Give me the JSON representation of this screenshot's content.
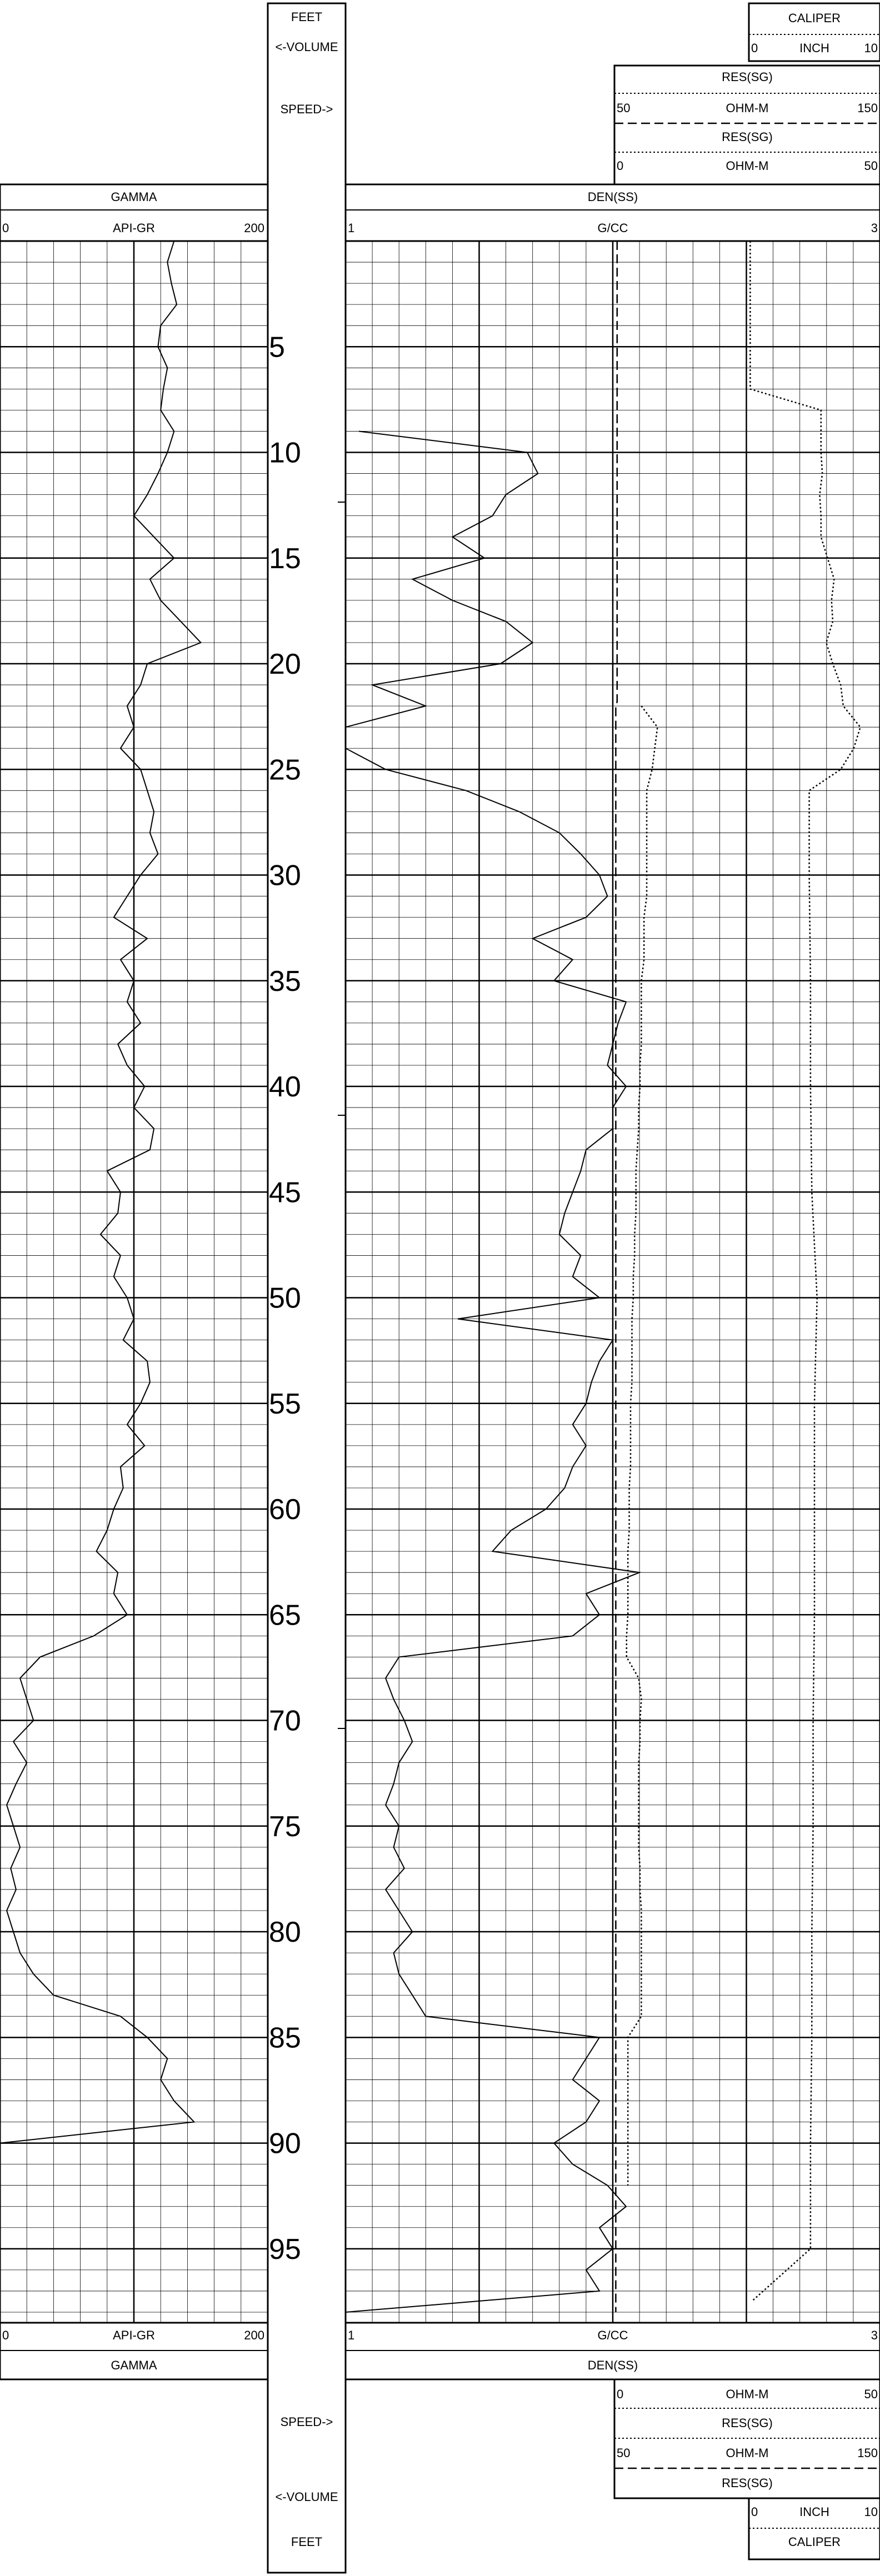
{
  "depth_track": {
    "unit": "FEET",
    "volume_label": "<-VOLUME",
    "speed_label": "SPEED->"
  },
  "headers": {
    "gamma": {
      "title": "GAMMA",
      "unit": "API-GR",
      "left": "0",
      "right": "200"
    },
    "density": {
      "title": "DEN(SS)",
      "unit": "G/CC",
      "left": "1",
      "right": "3"
    },
    "res_deep": {
      "title": "RES(SG)",
      "unit": "OHM-M",
      "left": "0",
      "right": "50"
    },
    "res_shallow": {
      "title": "RES(SG)",
      "unit": "OHM-M",
      "left": "50",
      "right": "150"
    },
    "caliper": {
      "title": "CALIPER",
      "unit": "INCH",
      "left": "0",
      "right": "10"
    }
  },
  "chart_data": {
    "type": "line",
    "depth_unit": "FEET",
    "depth_range": [
      0,
      98.5
    ],
    "depth_labels": [
      "5",
      "10",
      "15",
      "20",
      "25",
      "30",
      "35",
      "40",
      "45",
      "50",
      "55",
      "60",
      "65",
      "70",
      "75",
      "80",
      "85",
      "90",
      "95"
    ],
    "grid": true,
    "series": [
      {
        "name": "GAMMA",
        "unit": "API-GR",
        "xlim": [
          0,
          200
        ],
        "depth": [
          0,
          1,
          2,
          3,
          4,
          5,
          6,
          7,
          8,
          9,
          10,
          11,
          12,
          13,
          14,
          15,
          16,
          17,
          18,
          19,
          20,
          21,
          22,
          23,
          24,
          25,
          26,
          27,
          28,
          29,
          30,
          31,
          32,
          33,
          34,
          35,
          36,
          37,
          38,
          39,
          40,
          41,
          42,
          43,
          44,
          45,
          46,
          47,
          48,
          49,
          50,
          51,
          52,
          53,
          54,
          55,
          56,
          57,
          58,
          59,
          60,
          61,
          62,
          63,
          64,
          65,
          66,
          67,
          68,
          69,
          70,
          71,
          72,
          73,
          74,
          75,
          76,
          77,
          78,
          79,
          80,
          81,
          82,
          83,
          84,
          85,
          86,
          87,
          88,
          89,
          90,
          91,
          92,
          93,
          94,
          95,
          96,
          97,
          98
        ],
        "values": [
          130,
          125,
          128,
          132,
          120,
          118,
          125,
          122,
          120,
          130,
          125,
          118,
          110,
          100,
          115,
          130,
          112,
          120,
          135,
          150,
          110,
          105,
          95,
          100,
          90,
          105,
          110,
          115,
          112,
          118,
          105,
          95,
          85,
          110,
          90,
          100,
          95,
          105,
          88,
          95,
          108,
          100,
          115,
          112,
          80,
          90,
          88,
          75,
          90,
          85,
          95,
          100,
          92,
          110,
          112,
          105,
          95,
          108,
          90,
          92,
          85,
          80,
          72,
          88,
          85,
          95,
          70,
          30,
          15,
          20,
          25,
          10,
          20,
          12,
          5,
          10,
          15,
          8,
          12,
          5,
          10,
          15,
          25,
          40,
          90,
          110,
          125,
          120,
          130,
          145,
          0,
          0,
          0,
          0,
          0,
          0,
          0,
          0,
          0
        ],
        "style": "solid"
      },
      {
        "name": "DEN(SS)",
        "unit": "G/CC",
        "xlim": [
          1,
          3
        ],
        "depth": [
          0,
          1,
          2,
          3,
          4,
          5,
          6,
          7,
          8,
          9,
          10,
          11,
          12,
          13,
          14,
          15,
          16,
          17,
          18,
          19,
          20,
          21,
          22,
          23,
          24,
          25,
          26,
          27,
          28,
          29,
          30,
          31,
          32,
          33,
          34,
          35,
          36,
          37,
          38,
          39,
          40,
          41,
          42,
          43,
          44,
          45,
          46,
          47,
          48,
          49,
          50,
          51,
          52,
          53,
          54,
          55,
          56,
          57,
          58,
          59,
          60,
          61,
          62,
          63,
          64,
          65,
          66,
          67,
          68,
          69,
          70,
          71,
          72,
          73,
          74,
          75,
          76,
          77,
          78,
          79,
          80,
          81,
          82,
          83,
          84,
          85,
          86,
          87,
          88,
          89,
          90,
          91,
          92,
          93,
          94,
          95,
          96,
          97,
          98
        ],
        "values": [
          null,
          null,
          null,
          null,
          null,
          null,
          null,
          null,
          null,
          1.05,
          1.68,
          1.72,
          1.6,
          1.55,
          1.4,
          1.52,
          1.25,
          1.4,
          1.6,
          1.7,
          1.58,
          1.1,
          1.3,
          1.0,
          1.0,
          1.15,
          1.45,
          1.65,
          1.8,
          1.88,
          1.95,
          1.98,
          1.9,
          1.7,
          1.85,
          1.78,
          2.05,
          2.02,
          2.0,
          1.98,
          2.05,
          2.0,
          2.0,
          1.9,
          1.88,
          1.85,
          1.82,
          1.8,
          1.88,
          1.85,
          1.95,
          1.42,
          2.0,
          1.95,
          1.92,
          1.9,
          1.85,
          1.9,
          1.85,
          1.82,
          1.75,
          1.62,
          1.55,
          2.1,
          1.9,
          1.95,
          1.85,
          1.2,
          1.15,
          1.18,
          1.22,
          1.25,
          1.2,
          1.18,
          1.15,
          1.2,
          1.18,
          1.22,
          1.15,
          1.2,
          1.25,
          1.18,
          1.2,
          1.25,
          1.3,
          1.95,
          1.9,
          1.85,
          1.95,
          1.9,
          1.78,
          1.85,
          1.98,
          2.05,
          1.95,
          2.0,
          1.9,
          1.95,
          1.0
        ],
        "style": "solid"
      },
      {
        "name": "RES(SG) OHM-M 0-50",
        "unit": "OHM-M",
        "xlim": [
          0,
          50
        ],
        "depth": [
          22,
          23,
          24,
          25,
          26,
          27,
          28,
          29,
          30,
          31,
          32,
          33,
          34,
          35,
          36,
          37,
          38,
          39,
          40,
          41,
          42,
          43,
          44,
          45,
          46,
          47,
          48,
          49,
          50,
          51,
          52,
          53,
          54,
          55,
          56,
          57,
          58,
          59,
          60,
          61,
          62,
          63,
          64,
          65,
          66,
          67,
          68,
          69,
          70,
          71,
          72,
          73,
          74,
          75,
          76,
          77,
          78,
          79,
          80,
          81,
          82,
          83,
          84,
          85,
          86,
          87,
          88,
          89,
          90,
          91,
          92
        ],
        "values": [
          10,
          16,
          15,
          14,
          12,
          12,
          12,
          12,
          12,
          12,
          11,
          11,
          11,
          10,
          10,
          10,
          10,
          9.5,
          9.5,
          9,
          9,
          8.5,
          8,
          8,
          8,
          7.5,
          7.5,
          7,
          7,
          6.5,
          6.5,
          6.5,
          6.5,
          6,
          6,
          6,
          6,
          5.5,
          5.5,
          5.5,
          5,
          5,
          5,
          5,
          4.5,
          4.5,
          9,
          10,
          9.5,
          9.5,
          9,
          9,
          9,
          9,
          9,
          9.5,
          9.5,
          10,
          10,
          10,
          10,
          10,
          10,
          5,
          5,
          5,
          5,
          5,
          5,
          5,
          5
        ],
        "style": "dotted"
      },
      {
        "name": "RES(SG) OHM-M 50-150",
        "unit": "OHM-M",
        "xlim": [
          50,
          150
        ],
        "depth": [
          0,
          21.5,
          21.8,
          22,
          98
        ],
        "values": [
          51,
          51,
          51,
          50.5,
          50.5
        ],
        "style": "dashed"
      },
      {
        "name": "CALIPER",
        "unit": "INCH",
        "xlim": [
          0,
          10
        ],
        "depth": [
          0,
          7,
          8,
          9,
          10,
          11,
          12,
          13,
          14,
          15,
          16,
          17,
          18,
          19,
          20,
          21,
          22,
          23,
          24,
          25,
          26,
          30,
          35,
          40,
          45,
          50,
          55,
          60,
          65,
          70,
          75,
          80,
          85,
          90,
          95,
          97.5
        ],
        "values": [
          0.1,
          0.1,
          5.5,
          5.5,
          5.5,
          5.6,
          5.4,
          5.5,
          5.5,
          6.0,
          6.5,
          6.3,
          6.4,
          5.9,
          6.4,
          7.0,
          7.2,
          8.5,
          8.0,
          7.0,
          4.6,
          4.6,
          4.7,
          4.7,
          4.8,
          5.2,
          5.0,
          5.0,
          5.0,
          4.9,
          4.9,
          4.8,
          4.8,
          4.7,
          4.7,
          0.2
        ],
        "style": "dotted"
      }
    ]
  }
}
